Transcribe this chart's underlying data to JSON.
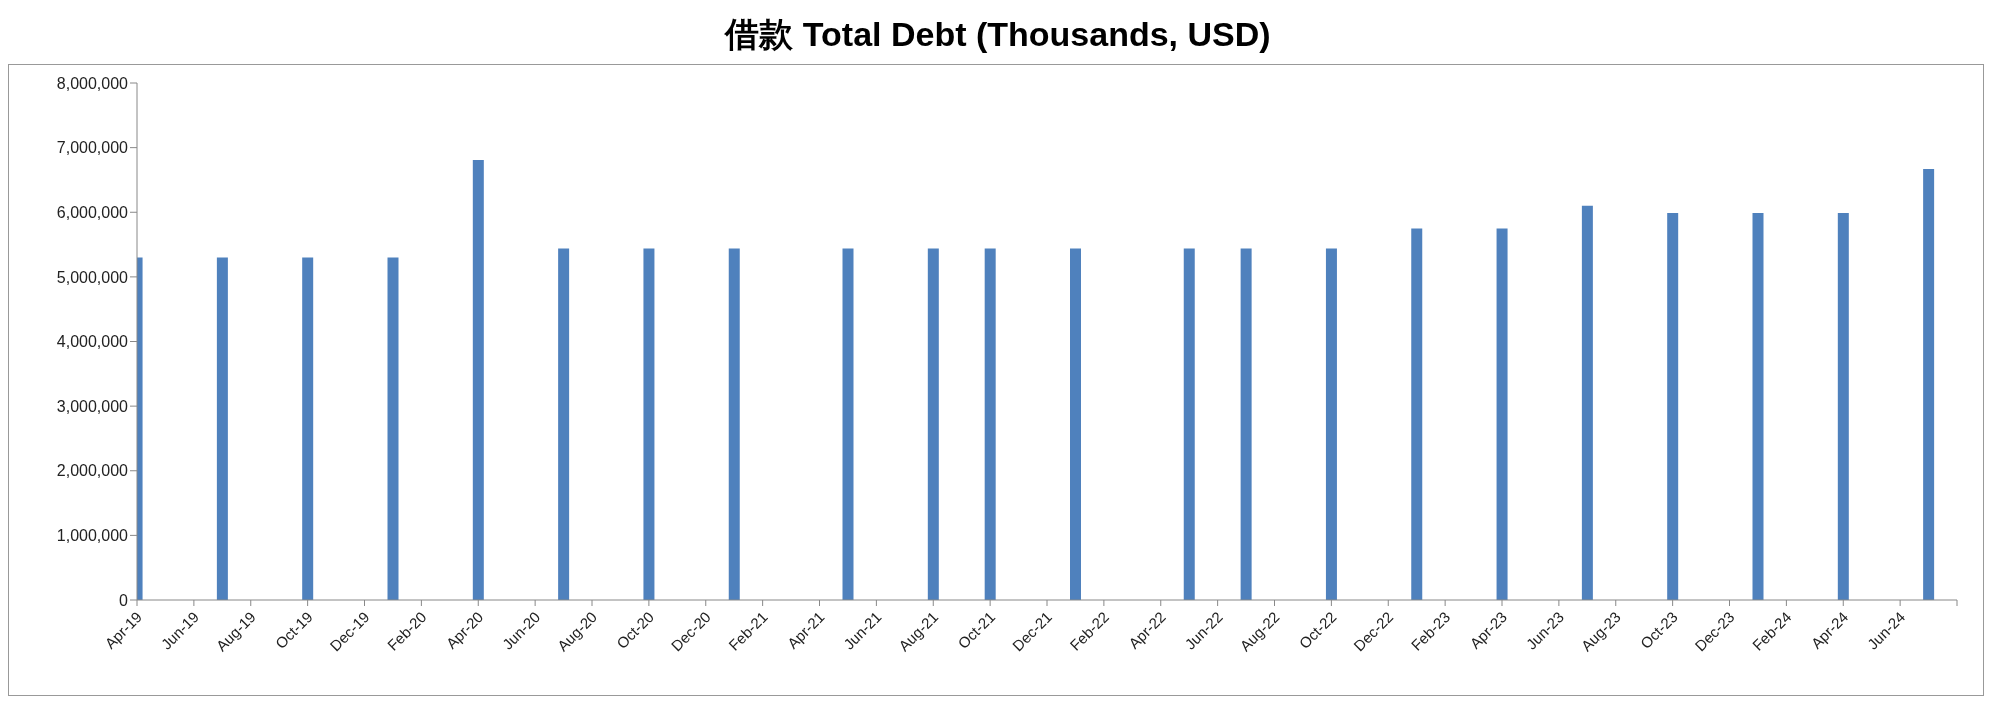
{
  "chart_data": {
    "type": "bar",
    "title": "借款 Total Debt (Thousands, USD)",
    "color": "#4f81bd",
    "x": [
      "2019-04",
      "2019-07",
      "2019-10",
      "2020-01",
      "2020-04",
      "2020-07",
      "2020-10",
      "2021-01",
      "2021-05",
      "2021-08",
      "2021-10",
      "2022-01",
      "2022-05",
      "2022-07",
      "2022-10",
      "2023-01",
      "2023-04",
      "2023-07",
      "2023-10",
      "2024-01",
      "2024-04",
      "2024-07"
    ],
    "values": [
      5300000,
      5300000,
      5300000,
      5300000,
      6810000,
      5440000,
      5440000,
      5440000,
      5440000,
      5440000,
      5440000,
      5440000,
      5440000,
      5440000,
      5440000,
      5750000,
      5750000,
      6100000,
      5990000,
      5990000,
      5990000,
      6670000
    ],
    "xlim": [
      "2019-04",
      "2024-08"
    ],
    "xticks": [
      {
        "value": "2019-04",
        "label": "Apr-19"
      },
      {
        "value": "2019-06",
        "label": "Jun-19"
      },
      {
        "value": "2019-08",
        "label": "Aug-19"
      },
      {
        "value": "2019-10",
        "label": "Oct-19"
      },
      {
        "value": "2019-12",
        "label": "Dec-19"
      },
      {
        "value": "2020-02",
        "label": "Feb-20"
      },
      {
        "value": "2020-04",
        "label": "Apr-20"
      },
      {
        "value": "2020-06",
        "label": "Jun-20"
      },
      {
        "value": "2020-08",
        "label": "Aug-20"
      },
      {
        "value": "2020-10",
        "label": "Oct-20"
      },
      {
        "value": "2020-12",
        "label": "Dec-20"
      },
      {
        "value": "2021-02",
        "label": "Feb-21"
      },
      {
        "value": "2021-04",
        "label": "Apr-21"
      },
      {
        "value": "2021-06",
        "label": "Jun-21"
      },
      {
        "value": "2021-08",
        "label": "Aug-21"
      },
      {
        "value": "2021-10",
        "label": "Oct-21"
      },
      {
        "value": "2021-12",
        "label": "Dec-21"
      },
      {
        "value": "2022-02",
        "label": "Feb-22"
      },
      {
        "value": "2022-04",
        "label": "Apr-22"
      },
      {
        "value": "2022-06",
        "label": "Jun-22"
      },
      {
        "value": "2022-08",
        "label": "Aug-22"
      },
      {
        "value": "2022-10",
        "label": "Oct-22"
      },
      {
        "value": "2022-12",
        "label": "Dec-22"
      },
      {
        "value": "2023-02",
        "label": "Feb-23"
      },
      {
        "value": "2023-04",
        "label": "Apr-23"
      },
      {
        "value": "2023-06",
        "label": "Jun-23"
      },
      {
        "value": "2023-08",
        "label": "Aug-23"
      },
      {
        "value": "2023-10",
        "label": "Oct-23"
      },
      {
        "value": "2023-12",
        "label": "Dec-23"
      },
      {
        "value": "2024-02",
        "label": "Feb-24"
      },
      {
        "value": "2024-04",
        "label": "Apr-24"
      },
      {
        "value": "2024-06",
        "label": "Jun-24"
      },
      {
        "value": "2024-08",
        "label": null
      }
    ],
    "ylim": [
      0,
      8000000
    ],
    "yticks": [
      0,
      {
        "value": 1000000,
        "label": "1,000,000"
      },
      {
        "value": 2000000,
        "label": "2,000,000"
      },
      {
        "value": 3000000,
        "label": "3,000,000"
      },
      {
        "value": 4000000,
        "label": "4,000,000"
      },
      {
        "value": 5000000,
        "label": "5,000,000"
      },
      {
        "value": 6000000,
        "label": "6,000,000"
      },
      {
        "value": 7000000,
        "label": "7,000,000"
      },
      {
        "value": 8000000,
        "label": "8,000,000"
      }
    ],
    "grid": false
  }
}
